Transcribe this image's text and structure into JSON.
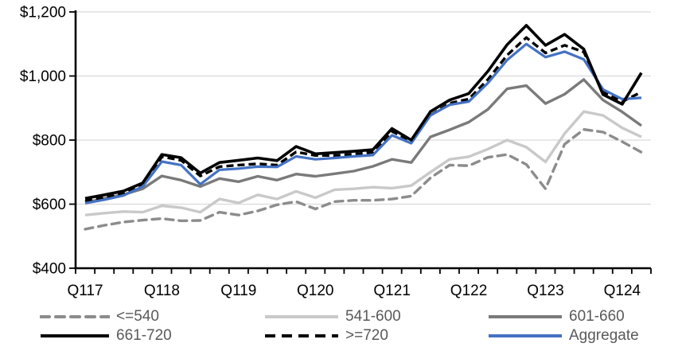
{
  "chart_data": {
    "type": "line",
    "grid": true,
    "legend_position": "bottom",
    "x_axis": {
      "categories": [
        "Q1 2017",
        "Q2 2017",
        "Q3 2017",
        "Q4 2017",
        "Q1 2018",
        "Q2 2018",
        "Q3 2018",
        "Q4 2018",
        "Q1 2019",
        "Q2 2019",
        "Q3 2019",
        "Q4 2019",
        "Q1 2020",
        "Q2 2020",
        "Q3 2020",
        "Q4 2020",
        "Q1 2021",
        "Q2 2021",
        "Q3 2021",
        "Q4 2021",
        "Q1 2022",
        "Q2 2022",
        "Q3 2022",
        "Q4 2022",
        "Q1 2023",
        "Q2 2023",
        "Q3 2023",
        "Q4 2023",
        "Q1 2024",
        "Q2 2024"
      ],
      "tick_labels": [
        {
          "label": "Q117",
          "index": 0
        },
        {
          "label": "Q118",
          "index": 4
        },
        {
          "label": "Q119",
          "index": 8
        },
        {
          "label": "Q120",
          "index": 12
        },
        {
          "label": "Q121",
          "index": 16
        },
        {
          "label": "Q122",
          "index": 20
        },
        {
          "label": "Q123",
          "index": 24
        },
        {
          "label": "Q124",
          "index": 28
        }
      ]
    },
    "y_axis": {
      "min": 400,
      "max": 1200,
      "ticks": [
        {
          "label": "$400",
          "value": 400
        },
        {
          "label": "$600",
          "value": 600
        },
        {
          "label": "$800",
          "value": 800
        },
        {
          "label": "$1,000",
          "value": 1000
        },
        {
          "label": "$1,200",
          "value": 1200
        }
      ]
    },
    "colors": {
      "grid": "#d9d9d9",
      "axis": "#000000",
      "legend_text": "#595959",
      "accent_blue": "#4472c4"
    },
    "draw_order": [
      1,
      0,
      2,
      4,
      5,
      3
    ],
    "series": [
      {
        "name": "<=540",
        "color": "#8c8c8c",
        "dash": "10 7",
        "cap": "round",
        "width": 3.4,
        "values": [
          522,
          534,
          544,
          550,
          555,
          548,
          549,
          575,
          566,
          579,
          598,
          608,
          585,
          608,
          612,
          612,
          616,
          625,
          682,
          722,
          720,
          746,
          755,
          724,
          648,
          787,
          833,
          825,
          795,
          762
        ]
      },
      {
        "name": "541-600",
        "color": "#c9c9c9",
        "dash": null,
        "cap": "butt",
        "width": 3.4,
        "values": [
          566,
          572,
          577,
          575,
          595,
          589,
          575,
          616,
          604,
          629,
          616,
          640,
          620,
          645,
          648,
          653,
          650,
          658,
          700,
          740,
          748,
          772,
          800,
          778,
          732,
          820,
          889,
          877,
          838,
          810
        ]
      },
      {
        "name": "601-660",
        "color": "#7a7a7a",
        "dash": null,
        "cap": "butt",
        "width": 3.4,
        "values": [
          605,
          618,
          630,
          648,
          688,
          675,
          655,
          680,
          670,
          687,
          675,
          694,
          687,
          695,
          703,
          718,
          740,
          730,
          810,
          832,
          856,
          896,
          960,
          970,
          914,
          943,
          989,
          925,
          888,
          845
        ]
      },
      {
        "name": "661-720",
        "color": "#000000",
        "dash": null,
        "cap": "butt",
        "width": 3.6,
        "values": [
          618,
          629,
          641,
          666,
          755,
          745,
          697,
          730,
          737,
          744,
          736,
          780,
          757,
          761,
          765,
          770,
          836,
          800,
          889,
          925,
          945,
          1015,
          1098,
          1158,
          1096,
          1130,
          1084,
          942,
          912,
          1010
        ]
      },
      {
        "name": ">=720",
        "color": "#000000",
        "dash": "9 5",
        "cap": "butt",
        "width": 3.4,
        "values": [
          610,
          621,
          633,
          658,
          748,
          737,
          688,
          717,
          722,
          726,
          722,
          763,
          752,
          752,
          756,
          762,
          827,
          797,
          877,
          915,
          928,
          989,
          1065,
          1120,
          1072,
          1096,
          1075,
          950,
          920,
          950
        ]
      },
      {
        "name": "Aggregate",
        "color": "#4472c4",
        "dash": null,
        "cap": "butt",
        "width": 3.2,
        "values": [
          603,
          614,
          627,
          655,
          733,
          722,
          662,
          707,
          711,
          717,
          716,
          749,
          740,
          744,
          749,
          753,
          815,
          790,
          877,
          910,
          920,
          978,
          1050,
          1100,
          1059,
          1076,
          1052,
          958,
          928,
          932
        ]
      }
    ]
  }
}
